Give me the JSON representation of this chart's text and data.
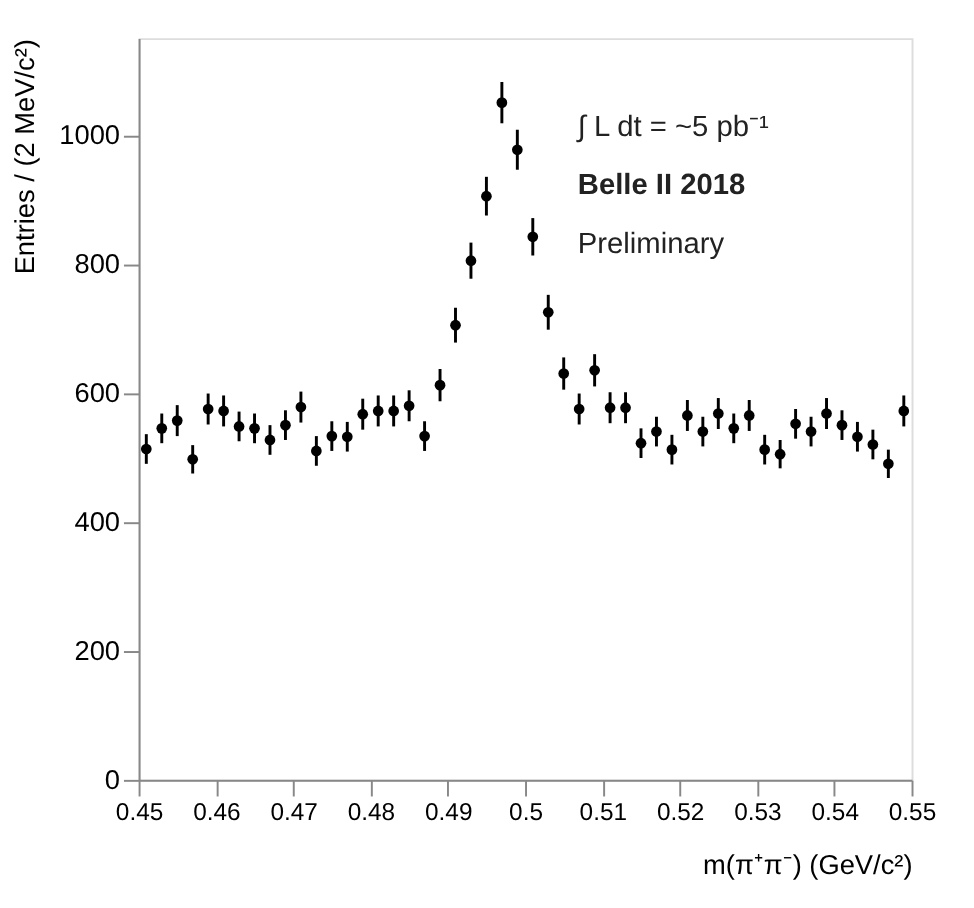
{
  "chart_data": {
    "type": "scatter",
    "xlabel": "m(π⁺π⁻) (GeV/c²)",
    "ylabel": "Entries / (2 MeV/c²)",
    "x": [
      0.451,
      0.453,
      0.455,
      0.457,
      0.459,
      0.461,
      0.463,
      0.465,
      0.467,
      0.469,
      0.471,
      0.473,
      0.475,
      0.477,
      0.479,
      0.481,
      0.483,
      0.485,
      0.487,
      0.489,
      0.491,
      0.493,
      0.495,
      0.497,
      0.499,
      0.501,
      0.503,
      0.505,
      0.507,
      0.509,
      0.511,
      0.513,
      0.515,
      0.517,
      0.519,
      0.521,
      0.523,
      0.525,
      0.527,
      0.529,
      0.531,
      0.533,
      0.535,
      0.537,
      0.539,
      0.541,
      0.543,
      0.545,
      0.547,
      0.549
    ],
    "series": [
      {
        "color": "#000000",
        "values": [
          513,
          545,
          557,
          497,
          575,
          572,
          548,
          545,
          527,
          550,
          578,
          510,
          533,
          532,
          567,
          572,
          572,
          580,
          533,
          612,
          705,
          805,
          905,
          1050,
          977,
          842,
          725,
          630,
          575,
          635,
          577,
          577,
          522,
          540,
          512,
          565,
          540,
          568,
          545,
          565,
          512,
          505,
          552,
          540,
          568,
          550,
          532,
          520,
          490,
          572
        ],
        "errors": [
          23,
          23,
          24,
          22,
          24,
          24,
          23,
          23,
          23,
          23,
          24,
          23,
          23,
          23,
          24,
          24,
          24,
          24,
          23,
          25,
          27,
          28,
          30,
          32,
          31,
          29,
          27,
          25,
          24,
          25,
          24,
          24,
          23,
          23,
          23,
          24,
          23,
          24,
          23,
          24,
          23,
          22,
          23,
          23,
          24,
          23,
          23,
          23,
          22,
          24
        ]
      }
    ],
    "xlim": [
      0.45,
      0.55
    ],
    "xticks": [
      0.45,
      0.46,
      0.47,
      0.48,
      0.49,
      0.5,
      0.51,
      0.52,
      0.53,
      0.54,
      0.55
    ],
    "ylim": [
      0,
      1150
    ],
    "yticks": [
      0,
      200,
      400,
      600,
      800,
      1000
    ],
    "annotations": [
      "∫ L dt = ~5 pb⁻¹",
      "Belle II   2018",
      "Preliminary"
    ],
    "marker": "circle",
    "grid": false
  }
}
